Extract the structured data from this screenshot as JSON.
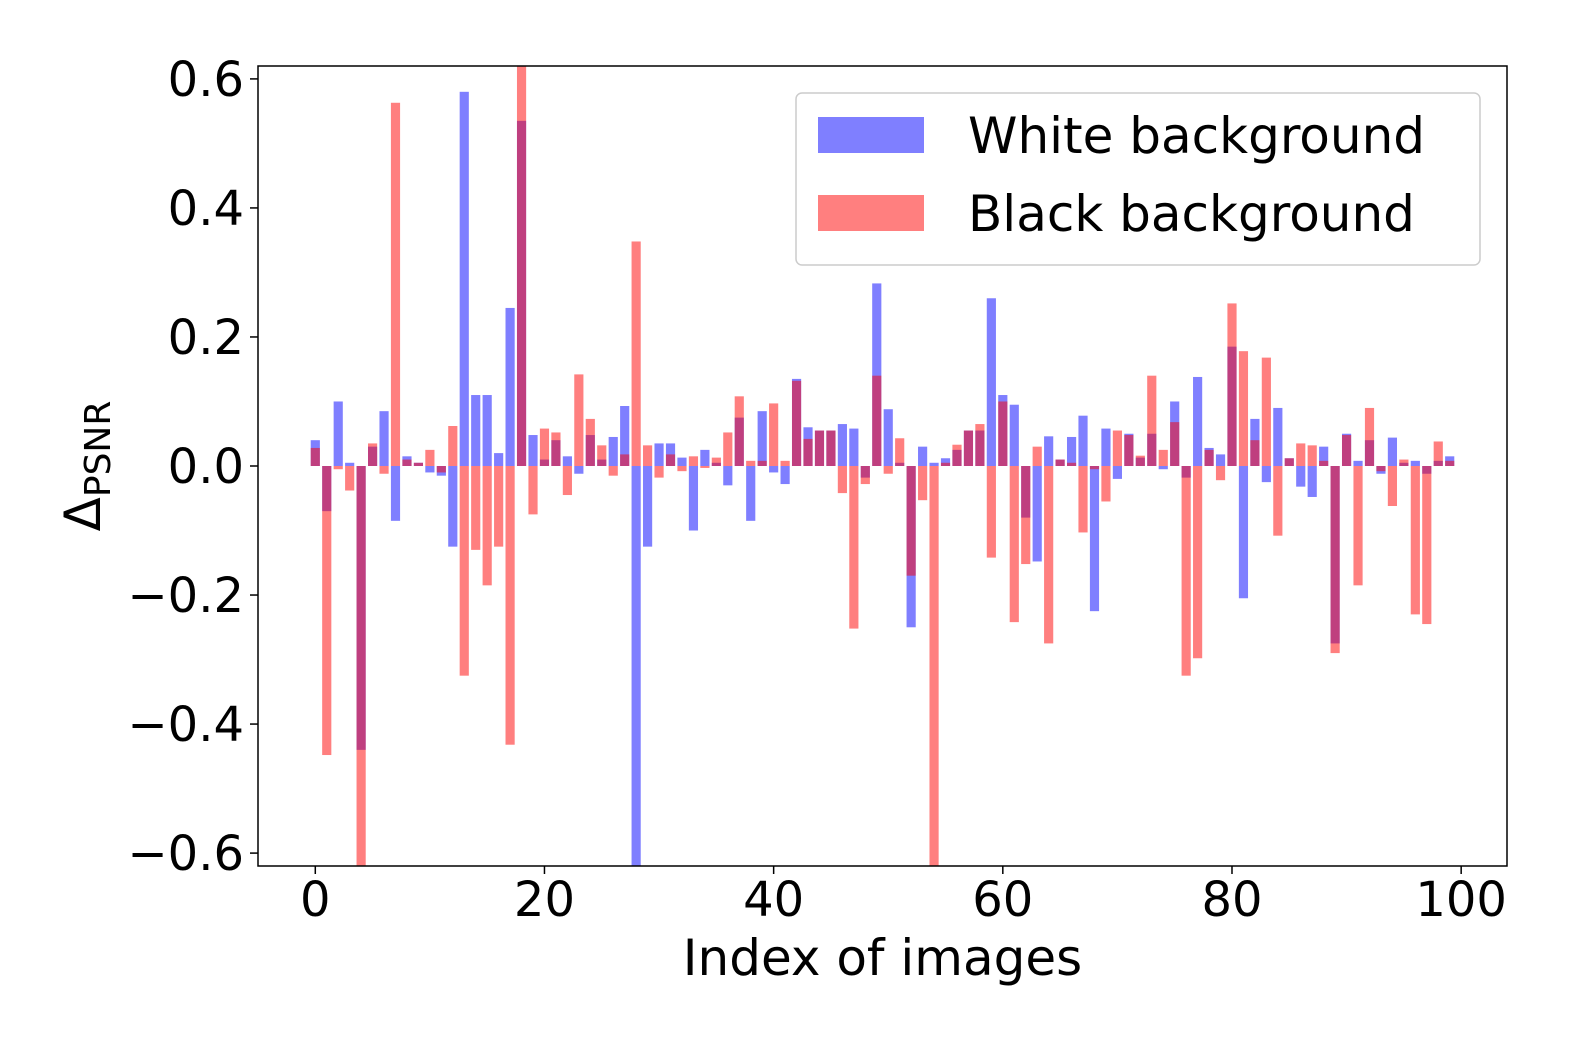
{
  "chart_data": {
    "type": "bar",
    "xlabel": "Index of images",
    "ylabel": "Δ",
    "ylabel_subscript": "PSNR",
    "xlim": [
      -5,
      104
    ],
    "ylim": [
      -0.62,
      0.62
    ],
    "xticks": [
      0,
      20,
      40,
      60,
      80,
      100
    ],
    "xtick_labels": [
      "0",
      "20",
      "40",
      "60",
      "80",
      "100"
    ],
    "yticks": [
      -0.6,
      -0.4,
      -0.2,
      0.0,
      0.2,
      0.4,
      0.6
    ],
    "ytick_labels": [
      "−0.6",
      "−0.4",
      "−0.2",
      "0.0",
      "0.2",
      "0.4",
      "0.6"
    ],
    "grid": false,
    "legend_position": "top-right",
    "x": [
      0,
      1,
      2,
      3,
      4,
      5,
      6,
      7,
      8,
      9,
      10,
      11,
      12,
      13,
      14,
      15,
      16,
      17,
      18,
      19,
      20,
      21,
      22,
      23,
      24,
      25,
      26,
      27,
      28,
      29,
      30,
      31,
      32,
      33,
      34,
      35,
      36,
      37,
      38,
      39,
      40,
      41,
      42,
      43,
      44,
      45,
      46,
      47,
      48,
      49,
      50,
      51,
      52,
      53,
      54,
      55,
      56,
      57,
      58,
      59,
      60,
      61,
      62,
      63,
      64,
      65,
      66,
      67,
      68,
      69,
      70,
      71,
      72,
      73,
      74,
      75,
      76,
      77,
      78,
      79,
      80,
      81,
      82,
      83,
      84,
      85,
      86,
      87,
      88,
      89,
      90,
      91,
      92,
      93,
      94,
      95,
      96,
      97,
      98,
      99
    ],
    "series": [
      {
        "name": "White background",
        "color": "#0000ff",
        "opacity": 0.5,
        "values": [
          0.04,
          -0.07,
          0.1,
          0.005,
          -0.44,
          0.03,
          0.085,
          -0.085,
          0.015,
          0.005,
          -0.01,
          -0.015,
          -0.125,
          0.58,
          0.11,
          0.11,
          0.02,
          0.245,
          0.535,
          0.048,
          0.01,
          0.04,
          0.015,
          -0.012,
          0.048,
          0.01,
          0.045,
          0.093,
          -0.62,
          -0.125,
          0.035,
          0.035,
          0.013,
          -0.1,
          0.025,
          0.005,
          -0.03,
          0.075,
          -0.085,
          0.085,
          -0.01,
          -0.028,
          0.135,
          0.06,
          0.055,
          0.055,
          0.065,
          0.058,
          -0.018,
          0.283,
          0.088,
          0.005,
          -0.25,
          0.03,
          0.005,
          0.012,
          0.025,
          0.055,
          0.055,
          0.26,
          0.11,
          0.095,
          -0.08,
          -0.148,
          0.046,
          0.01,
          0.045,
          0.078,
          -0.225,
          0.058,
          -0.02,
          0.05,
          0.013,
          0.05,
          -0.005,
          0.1,
          -0.018,
          0.138,
          0.028,
          0.018,
          0.185,
          -0.205,
          0.073,
          -0.025,
          0.09,
          0.012,
          -0.032,
          -0.048,
          0.03,
          -0.275,
          0.05,
          0.008,
          0.04,
          -0.012,
          0.044,
          0.005,
          0.008,
          -0.012,
          0.008,
          0.015
        ]
      },
      {
        "name": "Black background",
        "color": "#ff0000",
        "opacity": 0.5,
        "values": [
          0.028,
          -0.448,
          -0.005,
          -0.038,
          -0.62,
          0.035,
          -0.012,
          0.563,
          0.01,
          0.005,
          0.025,
          -0.01,
          0.062,
          -0.325,
          -0.13,
          -0.185,
          -0.125,
          -0.432,
          0.62,
          -0.075,
          0.058,
          0.052,
          -0.045,
          0.142,
          0.073,
          0.032,
          -0.015,
          0.018,
          0.348,
          0.032,
          -0.018,
          0.018,
          -0.008,
          0.015,
          -0.003,
          0.013,
          0.052,
          0.108,
          0.008,
          0.008,
          0.097,
          0.008,
          0.132,
          0.042,
          0.055,
          0.055,
          -0.042,
          -0.252,
          -0.028,
          0.14,
          -0.012,
          0.043,
          -0.17,
          -0.053,
          -0.62,
          0.005,
          0.033,
          0.055,
          0.065,
          -0.142,
          0.1,
          -0.242,
          -0.152,
          0.03,
          -0.275,
          0.01,
          0.005,
          -0.103,
          -0.005,
          -0.055,
          0.055,
          0.048,
          0.016,
          0.14,
          0.025,
          0.068,
          -0.325,
          -0.298,
          0.025,
          -0.022,
          0.252,
          0.178,
          0.04,
          0.168,
          -0.108,
          0.012,
          0.035,
          0.032,
          0.008,
          -0.29,
          0.048,
          -0.185,
          0.09,
          -0.008,
          -0.062,
          0.01,
          -0.23,
          -0.245,
          0.038,
          0.008
        ]
      }
    ]
  }
}
